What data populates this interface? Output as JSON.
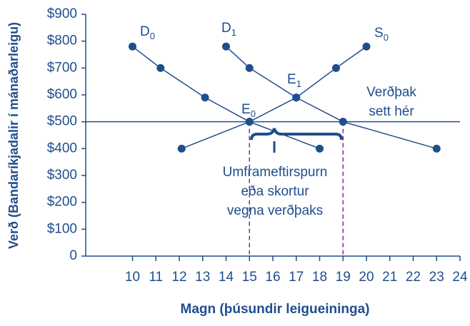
{
  "chart_data": {
    "type": "line",
    "xlabel": "Magn (þúsundir leigueininga)",
    "ylabel": "Verð (Bandaríkjadalir í mánaðarleigu)",
    "xlim": [
      8,
      24
    ],
    "ylim": [
      0,
      900
    ],
    "xticks": [
      10,
      11,
      12,
      13,
      14,
      15,
      16,
      17,
      18,
      19,
      20,
      21,
      22,
      23,
      24
    ],
    "yticks": [
      {
        "value": 0,
        "label": "0"
      },
      {
        "value": 100,
        "label": "$100"
      },
      {
        "value": 200,
        "label": "$200"
      },
      {
        "value": 300,
        "label": "$300"
      },
      {
        "value": 400,
        "label": "$400"
      },
      {
        "value": 500,
        "label": "$500"
      },
      {
        "value": 600,
        "label": "$600"
      },
      {
        "value": 700,
        "label": "$700"
      },
      {
        "value": 800,
        "label": "$800"
      },
      {
        "value": 900,
        "label": "$900"
      }
    ],
    "color": "#1f4e8c",
    "series": [
      {
        "name": "D",
        "sub": "0",
        "x": [
          10,
          11.2,
          13.1,
          15,
          18
        ],
        "values": [
          780,
          700,
          590,
          500,
          400
        ]
      },
      {
        "name": "D",
        "sub": "1",
        "x": [
          14,
          15,
          17,
          19,
          23
        ],
        "values": [
          780,
          700,
          590,
          500,
          400
        ]
      },
      {
        "name": "S",
        "sub": "0",
        "x": [
          12.1,
          15,
          17,
          18.7,
          20
        ],
        "values": [
          400,
          500,
          590,
          700,
          780
        ]
      }
    ],
    "ceiling": 500,
    "shortage_x": [
      15,
      19
    ],
    "points": [
      {
        "name": "E",
        "sub": "0"
      },
      {
        "name": "E",
        "sub": "1"
      }
    ],
    "ceiling_note": [
      "Verðþak",
      "sett hér"
    ],
    "shortage_note": [
      "Umframeftirspurn",
      "eða skortur",
      "vegna verðþaks"
    ]
  }
}
